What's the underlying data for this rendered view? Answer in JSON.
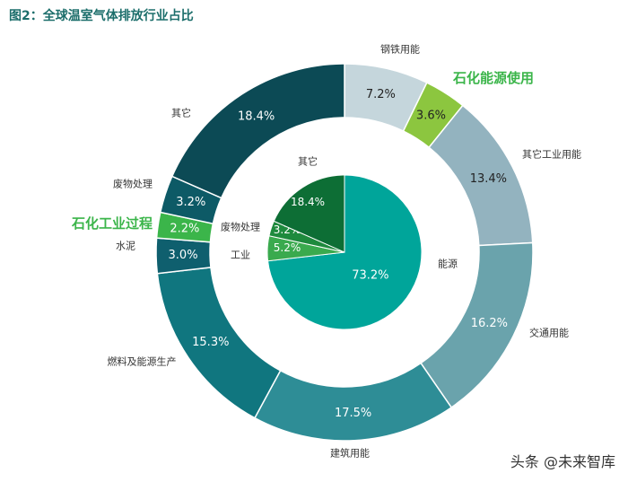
{
  "figure_title": "图2：全球温室气体排放行业占比",
  "watermark": "头条 @未来智库",
  "chart_data": {
    "type": "pie",
    "title": "图2：全球温室气体排放行业占比",
    "rings": [
      {
        "ring": "outer",
        "slices": [
          {
            "label": "钢铁用能",
            "value": 7.2,
            "color": "#c5d6dc"
          },
          {
            "label": "石化能源使用",
            "value": 3.6,
            "color": "#8cc63f",
            "highlight": true
          },
          {
            "label": "其它工业用能",
            "value": 13.4,
            "color": "#93b3bf"
          },
          {
            "label": "交通用能",
            "value": 16.2,
            "color": "#6aa3ac"
          },
          {
            "label": "建筑用能",
            "value": 17.5,
            "color": "#2e8d96"
          },
          {
            "label": "燃料及能源生产",
            "value": 15.3,
            "color": "#10767f"
          },
          {
            "label": "水泥",
            "value": 3.0,
            "color": "#0f5f6e"
          },
          {
            "label": "石化工业过程",
            "value": 2.2,
            "color": "#3bb54a",
            "highlight": true
          },
          {
            "label": "废物处理",
            "value": 3.2,
            "color": "#0d5a66"
          },
          {
            "label": "其它",
            "value": 18.4,
            "color": "#0c4a55"
          }
        ]
      },
      {
        "ring": "inner",
        "slices": [
          {
            "label": "能源",
            "value": 73.2,
            "color": "#00a59a"
          },
          {
            "label": "工业",
            "value": 5.2,
            "color": "#3aaa4e"
          },
          {
            "label": "废物处理",
            "value": 3.2,
            "color": "#1e8a3d"
          },
          {
            "label": "其它",
            "value": 18.4,
            "color": "#0d6e35"
          }
        ]
      }
    ],
    "value_suffix": "%"
  }
}
